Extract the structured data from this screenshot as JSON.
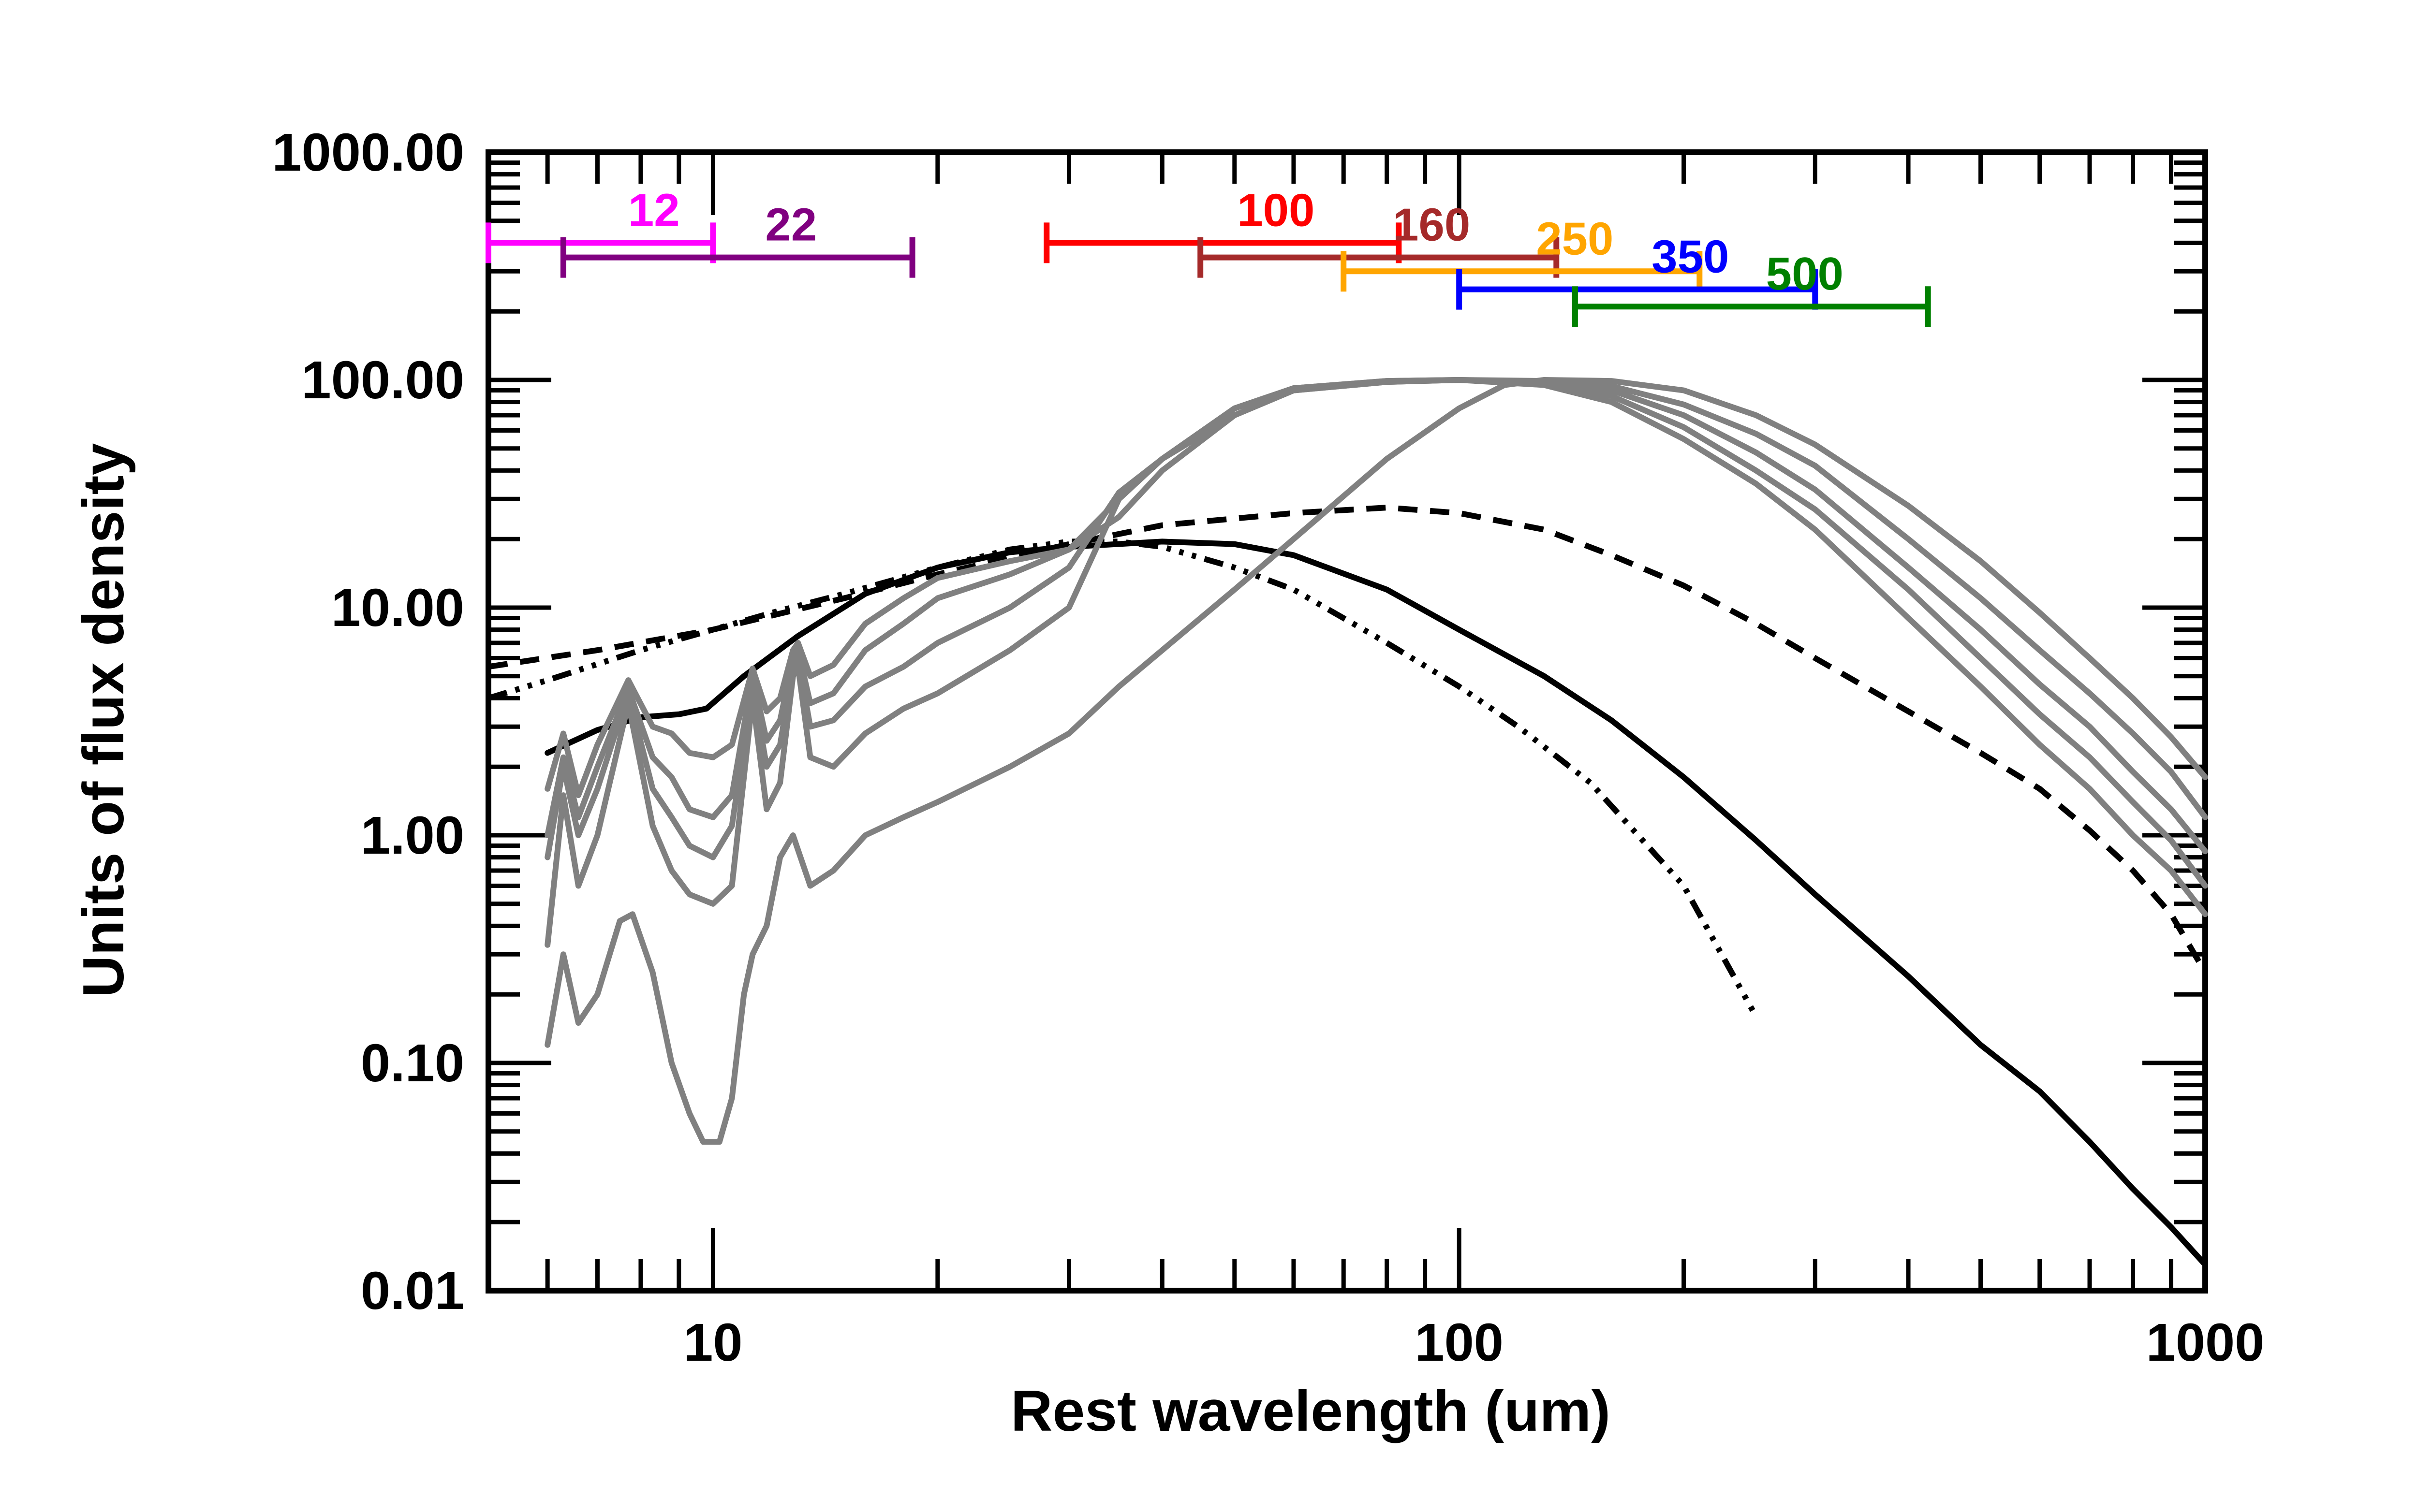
{
  "chart_data": {
    "type": "line",
    "title": "",
    "xlabel": "Rest wavelength (um)",
    "ylabel": "Units of flux density",
    "xscale": "log",
    "yscale": "log",
    "xlim": [
      5,
      1000
    ],
    "ylim": [
      0.01,
      1000
    ],
    "grid": false,
    "x_tick_labels": [
      {
        "value": 10,
        "label": "10"
      },
      {
        "value": 100,
        "label": "100"
      },
      {
        "value": 1000,
        "label": "1000"
      }
    ],
    "y_tick_labels": [
      {
        "value": 0.01,
        "label": "0.01"
      },
      {
        "value": 0.1,
        "label": "0.10"
      },
      {
        "value": 1,
        "label": "1.00"
      },
      {
        "value": 10,
        "label": "10.00"
      },
      {
        "value": 100,
        "label": "100.00"
      },
      {
        "value": 1000,
        "label": "1000.00"
      }
    ],
    "bands": [
      {
        "label": "12",
        "color": "#ff00ff",
        "xmin": 5.0,
        "xmax": 10.0,
        "y": 400
      },
      {
        "label": "22",
        "color": "#800080",
        "xmin": 6.3,
        "xmax": 18.5,
        "y": 345
      },
      {
        "label": "100",
        "color": "#ff0000",
        "xmin": 28,
        "xmax": 83,
        "y": 400
      },
      {
        "label": "160",
        "color": "#a52a2a",
        "xmin": 45,
        "xmax": 135,
        "y": 345
      },
      {
        "label": "250",
        "color": "#ffa500",
        "xmin": 70,
        "xmax": 210,
        "y": 300
      },
      {
        "label": "350",
        "color": "#0000ff",
        "xmin": 100,
        "xmax": 300,
        "y": 250
      },
      {
        "label": "500",
        "color": "#008000",
        "xmin": 143,
        "xmax": 425,
        "y": 210
      }
    ],
    "series": [
      {
        "name": "sed-solid-black",
        "color": "#000000",
        "style": "solid",
        "points": [
          [
            6.0,
            2.3
          ],
          [
            7.0,
            2.9
          ],
          [
            8.0,
            3.3
          ],
          [
            9.0,
            3.4
          ],
          [
            9.8,
            3.6
          ],
          [
            11,
            5.0
          ],
          [
            13,
            7.5
          ],
          [
            16,
            11.5
          ],
          [
            20,
            15.0
          ],
          [
            25,
            17.5
          ],
          [
            30,
            18.5
          ],
          [
            40,
            19.5
          ],
          [
            50,
            19.0
          ],
          [
            60,
            17.0
          ],
          [
            80,
            12.0
          ],
          [
            100,
            8.0
          ],
          [
            130,
            5.0
          ],
          [
            160,
            3.2
          ],
          [
            200,
            1.8
          ],
          [
            250,
            0.95
          ],
          [
            300,
            0.55
          ],
          [
            400,
            0.24
          ],
          [
            500,
            0.12
          ],
          [
            600,
            0.075
          ],
          [
            700,
            0.045
          ],
          [
            800,
            0.028
          ],
          [
            900,
            0.019
          ],
          [
            1000,
            0.013
          ]
        ]
      },
      {
        "name": "sed-dashed-black",
        "color": "#000000",
        "style": "dashed",
        "points": [
          [
            5,
            5.5
          ],
          [
            7,
            6.5
          ],
          [
            10,
            8.0
          ],
          [
            15,
            11.0
          ],
          [
            20,
            14.0
          ],
          [
            30,
            19.0
          ],
          [
            40,
            23.0
          ],
          [
            60,
            26.0
          ],
          [
            80,
            27.5
          ],
          [
            100,
            26.0
          ],
          [
            130,
            22.0
          ],
          [
            160,
            17.0
          ],
          [
            200,
            12.5
          ],
          [
            250,
            8.5
          ],
          [
            300,
            6.0
          ],
          [
            400,
            3.5
          ],
          [
            500,
            2.3
          ],
          [
            600,
            1.6
          ],
          [
            700,
            1.05
          ],
          [
            800,
            0.7
          ],
          [
            900,
            0.45
          ],
          [
            1000,
            0.25
          ]
        ]
      },
      {
        "name": "sed-dashdot-black",
        "color": "#000000",
        "style": "dashdot",
        "points": [
          [
            5,
            4.0
          ],
          [
            6,
            4.8
          ],
          [
            8,
            6.5
          ],
          [
            10,
            8.0
          ],
          [
            12,
            9.5
          ],
          [
            15,
            11.5
          ],
          [
            20,
            15.0
          ],
          [
            25,
            18.0
          ],
          [
            30,
            19.5
          ],
          [
            35,
            19.5
          ],
          [
            40,
            18.5
          ],
          [
            50,
            15.0
          ],
          [
            60,
            12.0
          ],
          [
            80,
            7.0
          ],
          [
            100,
            4.5
          ],
          [
            120,
            3.0
          ],
          [
            150,
            1.7
          ],
          [
            200,
            0.6
          ],
          [
            250,
            0.16
          ]
        ]
      },
      {
        "name": "template-grey-1",
        "color": "#808080",
        "style": "solid",
        "points": [
          [
            6.0,
            1.6
          ],
          [
            6.3,
            2.8
          ],
          [
            6.6,
            1.5
          ],
          [
            7.0,
            2.5
          ],
          [
            7.7,
            4.8
          ],
          [
            8.3,
            3.0
          ],
          [
            8.8,
            2.8
          ],
          [
            9.3,
            2.3
          ],
          [
            10.0,
            2.2
          ],
          [
            10.6,
            2.5
          ],
          [
            11.3,
            5.4
          ],
          [
            11.8,
            3.5
          ],
          [
            12.3,
            4.0
          ],
          [
            12.8,
            6.5
          ],
          [
            13.0,
            7.0
          ],
          [
            13.5,
            5.0
          ],
          [
            14.5,
            5.6
          ],
          [
            16,
            8.5
          ],
          [
            18,
            11.0
          ],
          [
            20,
            13.5
          ],
          [
            25,
            16.0
          ],
          [
            30,
            18.0
          ],
          [
            35,
            25.0
          ],
          [
            40,
            40.0
          ],
          [
            50,
            70.0
          ],
          [
            60,
            90.0
          ],
          [
            80,
            98.0
          ],
          [
            100,
            100.0
          ],
          [
            130,
            95.0
          ],
          [
            160,
            80.0
          ],
          [
            200,
            55.0
          ],
          [
            250,
            35.0
          ],
          [
            300,
            22.0
          ],
          [
            400,
            9.0
          ],
          [
            500,
            4.5
          ],
          [
            600,
            2.5
          ],
          [
            700,
            1.6
          ],
          [
            800,
            1.0
          ],
          [
            900,
            0.7
          ],
          [
            1000,
            0.45
          ]
        ]
      },
      {
        "name": "template-grey-2",
        "color": "#808080",
        "style": "solid",
        "points": [
          [
            6.0,
            1.0
          ],
          [
            6.3,
            2.2
          ],
          [
            6.6,
            1.2
          ],
          [
            7.0,
            2.0
          ],
          [
            7.7,
            4.4
          ],
          [
            8.3,
            2.2
          ],
          [
            8.8,
            1.8
          ],
          [
            9.3,
            1.3
          ],
          [
            10.0,
            1.2
          ],
          [
            10.6,
            1.5
          ],
          [
            11.3,
            5.0
          ],
          [
            11.8,
            2.6
          ],
          [
            12.3,
            3.2
          ],
          [
            12.8,
            6.0
          ],
          [
            13.0,
            6.5
          ],
          [
            13.5,
            3.8
          ],
          [
            14.5,
            4.2
          ],
          [
            16,
            6.5
          ],
          [
            18,
            8.5
          ],
          [
            20,
            11.0
          ],
          [
            25,
            14.0
          ],
          [
            30,
            18.0
          ],
          [
            35,
            30.0
          ],
          [
            40,
            45.0
          ],
          [
            50,
            75.0
          ],
          [
            60,
            92.0
          ],
          [
            80,
            99.0
          ],
          [
            100,
            100.0
          ],
          [
            130,
            97.0
          ],
          [
            160,
            85.0
          ],
          [
            200,
            62.0
          ],
          [
            250,
            40.0
          ],
          [
            300,
            27.0
          ],
          [
            400,
            12.0
          ],
          [
            500,
            6.0
          ],
          [
            600,
            3.4
          ],
          [
            700,
            2.2
          ],
          [
            800,
            1.4
          ],
          [
            900,
            0.95
          ],
          [
            1000,
            0.6
          ]
        ]
      },
      {
        "name": "template-grey-3",
        "color": "#808080",
        "style": "solid",
        "points": [
          [
            6.0,
            0.8
          ],
          [
            6.3,
            2.0
          ],
          [
            6.6,
            1.0
          ],
          [
            7.0,
            1.6
          ],
          [
            7.7,
            4.2
          ],
          [
            8.3,
            1.6
          ],
          [
            8.8,
            1.2
          ],
          [
            9.3,
            0.9
          ],
          [
            10.0,
            0.8
          ],
          [
            10.6,
            1.1
          ],
          [
            11.3,
            4.6
          ],
          [
            11.8,
            2.0
          ],
          [
            12.3,
            2.5
          ],
          [
            12.8,
            5.5
          ],
          [
            13.0,
            6.0
          ],
          [
            13.5,
            3.0
          ],
          [
            14.5,
            3.2
          ],
          [
            16,
            4.5
          ],
          [
            18,
            5.5
          ],
          [
            20,
            7.0
          ],
          [
            25,
            10.0
          ],
          [
            30,
            15.0
          ],
          [
            35,
            32.0
          ],
          [
            40,
            45.0
          ],
          [
            50,
            75.0
          ],
          [
            60,
            92.0
          ],
          [
            80,
            99.0
          ],
          [
            100,
            100.0
          ],
          [
            130,
            98.0
          ],
          [
            160,
            90.0
          ],
          [
            200,
            70.0
          ],
          [
            250,
            48.0
          ],
          [
            300,
            33.0
          ],
          [
            400,
            15.0
          ],
          [
            500,
            8.0
          ],
          [
            600,
            4.6
          ],
          [
            700,
            3.0
          ],
          [
            800,
            1.9
          ],
          [
            900,
            1.3
          ],
          [
            1000,
            0.85
          ]
        ]
      },
      {
        "name": "template-grey-4",
        "color": "#808080",
        "style": "solid",
        "points": [
          [
            6.0,
            0.33
          ],
          [
            6.3,
            1.5
          ],
          [
            6.6,
            0.6
          ],
          [
            7.0,
            1.0
          ],
          [
            7.7,
            3.8
          ],
          [
            8.3,
            1.1
          ],
          [
            8.8,
            0.7
          ],
          [
            9.3,
            0.55
          ],
          [
            10.0,
            0.5
          ],
          [
            10.6,
            0.6
          ],
          [
            11.3,
            4.0
          ],
          [
            11.8,
            1.3
          ],
          [
            12.3,
            1.7
          ],
          [
            12.8,
            5.0
          ],
          [
            13.0,
            5.5
          ],
          [
            13.5,
            2.2
          ],
          [
            14.5,
            2.0
          ],
          [
            16,
            2.8
          ],
          [
            18,
            3.6
          ],
          [
            20,
            4.2
          ],
          [
            25,
            6.5
          ],
          [
            30,
            10.0
          ],
          [
            35,
            30.0
          ],
          [
            40,
            45.0
          ],
          [
            50,
            70.0
          ],
          [
            60,
            90.0
          ],
          [
            80,
            98.0
          ],
          [
            100,
            100.0
          ],
          [
            130,
            99.0
          ],
          [
            160,
            94.0
          ],
          [
            200,
            78.0
          ],
          [
            250,
            58.0
          ],
          [
            300,
            42.0
          ],
          [
            400,
            20.0
          ],
          [
            500,
            11.0
          ],
          [
            600,
            6.5
          ],
          [
            700,
            4.2
          ],
          [
            800,
            2.8
          ],
          [
            900,
            1.9
          ],
          [
            1000,
            1.2
          ]
        ]
      },
      {
        "name": "template-grey-5",
        "color": "#808080",
        "style": "solid",
        "points": [
          [
            6.0,
            0.12
          ],
          [
            6.3,
            0.3
          ],
          [
            6.6,
            0.15
          ],
          [
            7.0,
            0.2
          ],
          [
            7.5,
            0.42
          ],
          [
            7.8,
            0.45
          ],
          [
            8.3,
            0.25
          ],
          [
            8.8,
            0.1
          ],
          [
            9.3,
            0.06
          ],
          [
            9.7,
            0.045
          ],
          [
            10.2,
            0.045
          ],
          [
            10.6,
            0.07
          ],
          [
            11.0,
            0.2
          ],
          [
            11.3,
            0.3
          ],
          [
            11.8,
            0.4
          ],
          [
            12.3,
            0.8
          ],
          [
            12.8,
            1.0
          ],
          [
            13.5,
            0.6
          ],
          [
            14.5,
            0.7
          ],
          [
            16,
            1.0
          ],
          [
            18,
            1.2
          ],
          [
            20,
            1.4
          ],
          [
            25,
            2.0
          ],
          [
            30,
            2.8
          ],
          [
            35,
            4.5
          ],
          [
            40,
            6.5
          ],
          [
            50,
            12.0
          ],
          [
            60,
            20.0
          ],
          [
            80,
            45.0
          ],
          [
            100,
            75.0
          ],
          [
            115,
            95.0
          ],
          [
            130,
            100.0
          ],
          [
            160,
            99.0
          ],
          [
            200,
            90.0
          ],
          [
            250,
            70.0
          ],
          [
            300,
            52.0
          ],
          [
            400,
            28.0
          ],
          [
            500,
            16.0
          ],
          [
            600,
            9.5
          ],
          [
            700,
            6.0
          ],
          [
            800,
            4.0
          ],
          [
            900,
            2.7
          ],
          [
            1000,
            1.8
          ]
        ]
      }
    ]
  }
}
